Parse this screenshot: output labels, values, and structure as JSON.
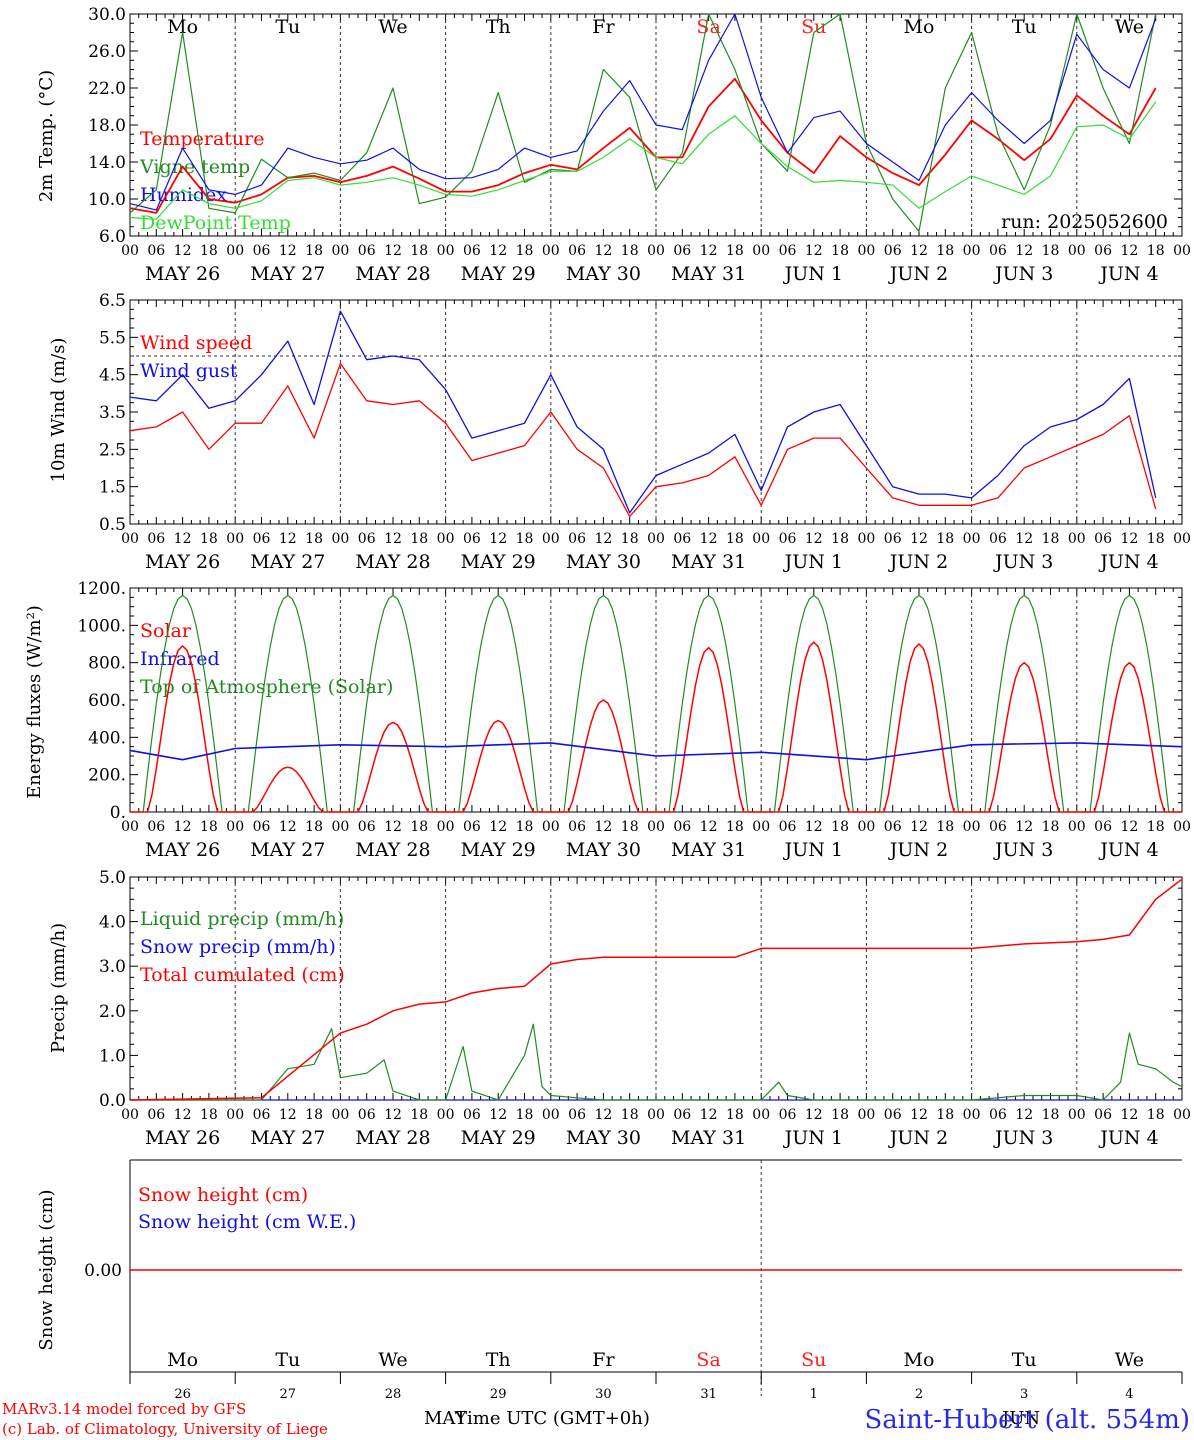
{
  "run_label": "run: 2025052600",
  "footer": {
    "model": "MARv3.14 model forced by GFS",
    "copyright": "(c) Lab. of Climatology, University of Liege",
    "xlabel": "Time UTC (GMT+0h)",
    "month_left": "MAY",
    "month_right": "JUN",
    "station": "Saint-Hubert (alt. 554m)"
  },
  "days": [
    "MAY 26",
    "MAY 27",
    "MAY 28",
    "MAY 29",
    "MAY 30",
    "MAY 31",
    "JUN  1",
    "JUN  2",
    "JUN  3",
    "JUN  4"
  ],
  "day_numbers": [
    "26",
    "27",
    "28",
    "29",
    "30",
    "31",
    "1",
    "2",
    "3",
    "4"
  ],
  "weekdays": [
    "Mo",
    "Tu",
    "We",
    "Th",
    "Fr",
    "Sa",
    "Su",
    "Mo",
    "Tu",
    "We"
  ],
  "weekend_color": "#ff2020",
  "hour_ticks": [
    "00",
    "06",
    "12",
    "18"
  ],
  "colors": {
    "red": "#ff0000",
    "green": "#228b22",
    "blue": "#1010e0",
    "lightgreen": "#33dd33"
  },
  "chart_data": [
    {
      "type": "line",
      "ylabel": "2m Temp. (°C)",
      "ylim": [
        6,
        30
      ],
      "yticks": [
        "6.0",
        "10.0",
        "14.0",
        "18.0",
        "22.0",
        "26.0",
        "30.0"
      ],
      "x_unit": "hours since May 26 00 UTC",
      "series": [
        {
          "name": "Temperature",
          "color": "red",
          "x": [
            0,
            6,
            12,
            18,
            24,
            30,
            36,
            42,
            48,
            54,
            60,
            66,
            72,
            78,
            84,
            90,
            96,
            102,
            108,
            114,
            120,
            126,
            132,
            138,
            144,
            150,
            156,
            162,
            168,
            174,
            180,
            186,
            192,
            198,
            204,
            210,
            216,
            222,
            228,
            234
          ],
          "y": [
            9,
            8.5,
            13.5,
            10,
            9.6,
            10.5,
            12.3,
            12.5,
            11.8,
            12.5,
            13.5,
            12.2,
            10.8,
            10.8,
            11.5,
            12.8,
            13.7,
            13.2,
            15.5,
            17.7,
            14.5,
            14.5,
            20,
            23,
            18.5,
            15,
            12.8,
            16.8,
            14.5,
            12.8,
            11.5,
            14.8,
            18.5,
            16.5,
            14.2,
            16.5,
            21.2,
            19,
            17,
            22
          ]
        },
        {
          "name": "Vigne temp",
          "color": "green",
          "x": [
            0,
            6,
            12,
            18,
            24,
            30,
            36,
            42,
            48,
            54,
            60,
            66,
            72,
            78,
            84,
            90,
            96,
            102,
            108,
            114,
            120,
            126,
            132,
            138,
            144,
            150,
            156,
            162,
            168,
            174,
            180,
            186,
            192,
            198,
            204,
            210,
            216,
            222,
            228,
            234
          ],
          "y": [
            8.5,
            11,
            28,
            9,
            8.5,
            14.3,
            12.3,
            12.8,
            12,
            15,
            22,
            9.5,
            10.2,
            13,
            21.5,
            11.8,
            13.2,
            13,
            24,
            21,
            11,
            15,
            31,
            24,
            16,
            13,
            28,
            30,
            16,
            10,
            6.5,
            22,
            28,
            17,
            11,
            18,
            31,
            22,
            16,
            30
          ]
        },
        {
          "name": "Humidex",
          "color": "blue",
          "x": [
            0,
            6,
            12,
            18,
            24,
            30,
            36,
            42,
            48,
            54,
            60,
            66,
            72,
            78,
            84,
            90,
            96,
            102,
            108,
            114,
            120,
            126,
            132,
            138,
            144,
            150,
            156,
            162,
            168,
            174,
            180,
            186,
            192,
            198,
            204,
            210,
            216,
            222,
            228,
            234
          ],
          "y": [
            9.5,
            8.8,
            15.5,
            11,
            10.5,
            11.5,
            15.5,
            14.5,
            13.8,
            14.2,
            15.5,
            13.2,
            12.2,
            12.3,
            13.2,
            15.5,
            14.5,
            15.2,
            19.5,
            22.8,
            18,
            17.5,
            25,
            30,
            21,
            15,
            18.8,
            19.5,
            16,
            14,
            12,
            18,
            21.5,
            18.5,
            16,
            18.5,
            27.8,
            24,
            22,
            29.5
          ]
        },
        {
          "name": "DewPoint Temp",
          "color": "lightgreen",
          "x": [
            0,
            6,
            12,
            18,
            24,
            30,
            36,
            42,
            48,
            54,
            60,
            66,
            72,
            78,
            84,
            90,
            96,
            102,
            108,
            114,
            120,
            126,
            132,
            138,
            144,
            150,
            156,
            162,
            168,
            174,
            180,
            186,
            192,
            198,
            204,
            210,
            216,
            222,
            228,
            234
          ],
          "y": [
            8,
            7.8,
            11,
            9.5,
            9,
            9.8,
            12,
            12.3,
            11.5,
            11.8,
            12.3,
            11.5,
            10.5,
            10.3,
            11,
            12,
            13,
            13,
            14.5,
            16.5,
            14.5,
            13.8,
            17,
            19,
            16,
            13.5,
            11.8,
            12,
            11.8,
            11.5,
            9,
            10.8,
            12.5,
            11.5,
            10.5,
            12.5,
            17.8,
            18,
            16.5,
            20.5
          ]
        }
      ]
    },
    {
      "type": "line",
      "ylabel": "10m Wind (m/s)",
      "ylim": [
        0.5,
        6.5
      ],
      "yticks": [
        "0.5",
        "1.5",
        "2.5",
        "3.5",
        "4.5",
        "5.5",
        "6.5"
      ],
      "reference_line": 5,
      "series": [
        {
          "name": "Wind speed",
          "color": "red",
          "x": [
            0,
            6,
            12,
            18,
            24,
            30,
            36,
            42,
            48,
            54,
            60,
            66,
            72,
            78,
            84,
            90,
            96,
            102,
            108,
            114,
            120,
            126,
            132,
            138,
            144,
            150,
            156,
            162,
            168,
            174,
            180,
            186,
            192,
            198,
            204,
            210,
            216,
            222,
            228,
            234
          ],
          "y": [
            3,
            3.1,
            3.5,
            2.5,
            3.2,
            3.2,
            4.2,
            2.8,
            4.8,
            3.8,
            3.7,
            3.8,
            3.2,
            2.2,
            2.4,
            2.6,
            3.5,
            2.5,
            2,
            0.7,
            1.5,
            1.6,
            1.8,
            2.3,
            1,
            2.5,
            2.8,
            2.8,
            2,
            1.2,
            1,
            1,
            1,
            1.2,
            2,
            2.3,
            2.6,
            2.9,
            3.4,
            0.9
          ]
        },
        {
          "name": "Wind gust",
          "color": "blue",
          "x": [
            0,
            6,
            12,
            18,
            24,
            30,
            36,
            42,
            48,
            54,
            60,
            66,
            72,
            78,
            84,
            90,
            96,
            102,
            108,
            114,
            120,
            126,
            132,
            138,
            144,
            150,
            156,
            162,
            168,
            174,
            180,
            186,
            192,
            198,
            204,
            210,
            216,
            222,
            228,
            234
          ],
          "y": [
            3.9,
            3.8,
            4.5,
            3.6,
            3.8,
            4.5,
            5.4,
            3.7,
            6.2,
            4.9,
            5,
            4.9,
            4.1,
            2.8,
            3,
            3.2,
            4.5,
            3.1,
            2.5,
            0.8,
            1.8,
            2.1,
            2.4,
            2.9,
            1.4,
            3.1,
            3.5,
            3.7,
            2.6,
            1.5,
            1.3,
            1.3,
            1.2,
            1.8,
            2.6,
            3.1,
            3.3,
            3.7,
            4.4,
            1.2
          ]
        }
      ]
    },
    {
      "type": "line",
      "ylabel": "Energy fluxes (W/m²)",
      "ylim": [
        0,
        1200
      ],
      "yticks": [
        "0.",
        "200.",
        "400.",
        "600.",
        "800.",
        "1000.",
        "1200."
      ],
      "series": [
        {
          "name": "Solar",
          "color": "red",
          "daily_peaks": [
            890,
            240,
            480,
            490,
            600,
            880,
            910,
            900,
            800,
            800
          ]
        },
        {
          "name": "Infrared",
          "color": "blue",
          "x": [
            0,
            12,
            24,
            48,
            72,
            96,
            120,
            144,
            168,
            192,
            216,
            240
          ],
          "y": [
            330,
            280,
            340,
            360,
            350,
            370,
            300,
            320,
            280,
            360,
            370,
            350
          ]
        },
        {
          "name": "Top of Atmosphere (Solar)",
          "color": "green",
          "daily_peak": 1160,
          "sunrise_h": 3,
          "sunset_h": 21
        }
      ]
    },
    {
      "type": "line",
      "ylabel": "Precip (mm/h)",
      "ylim": [
        0,
        5
      ],
      "yticks": [
        "0.0",
        "1.0",
        "2.0",
        "3.0",
        "4.0",
        "5.0"
      ],
      "series": [
        {
          "name": "Liquid precip (mm/h)",
          "color": "green",
          "x": [
            0,
            30,
            36,
            42,
            46,
            48,
            54,
            58,
            60,
            66,
            72,
            76,
            78,
            84,
            90,
            92,
            94,
            96,
            102,
            108,
            144,
            148,
            150,
            156,
            168,
            192,
            204,
            216,
            222,
            226,
            228,
            230,
            234,
            238,
            240
          ],
          "y": [
            0,
            0,
            0.7,
            0.8,
            1.6,
            0.5,
            0.6,
            0.9,
            0.2,
            0,
            0,
            1.2,
            0.2,
            0,
            1,
            1.7,
            0.3,
            0.1,
            0.05,
            0,
            0,
            0.4,
            0.1,
            0,
            0,
            0,
            0.1,
            0.1,
            0,
            0.4,
            1.5,
            0.8,
            0.7,
            0.4,
            0.3
          ]
        },
        {
          "name": "Snow precip (mm/h)",
          "color": "blue",
          "x": [
            0,
            240
          ],
          "y": [
            0,
            0
          ]
        },
        {
          "name": "Total cumulated (cm)",
          "color": "red",
          "x": [
            0,
            30,
            48,
            54,
            60,
            66,
            72,
            78,
            84,
            90,
            96,
            102,
            108,
            138,
            144,
            180,
            192,
            204,
            216,
            222,
            228,
            234,
            240
          ],
          "y": [
            0,
            0.05,
            1.5,
            1.7,
            2,
            2.15,
            2.2,
            2.4,
            2.5,
            2.55,
            3.05,
            3.15,
            3.2,
            3.2,
            3.4,
            3.4,
            3.4,
            3.5,
            3.55,
            3.6,
            3.7,
            4.5,
            4.95
          ]
        }
      ]
    },
    {
      "type": "line",
      "ylabel": "Snow height (cm)",
      "ytick": "0.00",
      "series": [
        {
          "name": "Snow height (cm)",
          "color": "red",
          "x": [
            0,
            240
          ],
          "y": [
            0,
            0
          ]
        },
        {
          "name": "Snow height (cm W.E.)",
          "color": "blue",
          "x": [
            0,
            240
          ],
          "y": [
            0,
            0
          ]
        }
      ]
    }
  ]
}
